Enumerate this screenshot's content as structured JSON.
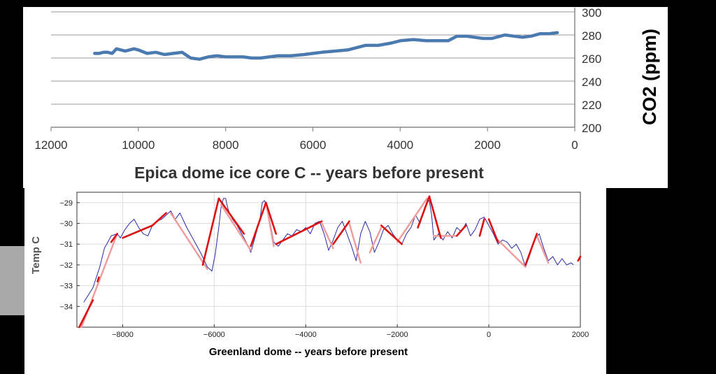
{
  "chart_data": [
    {
      "type": "line",
      "xlabel": "Epica dome ice core C -- years before present",
      "ylabel": "CO2 (ppm)",
      "xlim": [
        12000,
        0
      ],
      "ylim": [
        200,
        300
      ],
      "x_ticks": [
        12000,
        10000,
        8000,
        6000,
        4000,
        2000,
        0
      ],
      "y_ticks": [
        200,
        220,
        240,
        260,
        280,
        300
      ],
      "y_axis_side": "right",
      "grid": "horizontal",
      "colors": {
        "line": "#4a7ab0",
        "grid": "#9a9a9a",
        "axis": "#888888"
      },
      "series": [
        {
          "x": [
            11000,
            10900,
            10800,
            10700,
            10600,
            10500,
            10400,
            10300,
            10200,
            10100,
            10000,
            9800,
            9600,
            9400,
            9200,
            9000,
            8800,
            8600,
            8400,
            8200,
            8000,
            7800,
            7600,
            7400,
            7200,
            7000,
            6800,
            6500,
            6200,
            6000,
            5800,
            5500,
            5200,
            5000,
            4800,
            4500,
            4200,
            4000,
            3700,
            3400,
            3100,
            2900,
            2700,
            2500,
            2300,
            2100,
            1900,
            1700,
            1600,
            1400,
            1200,
            1000,
            800,
            600,
            400
          ],
          "y": [
            264,
            264,
            265,
            265,
            264,
            268,
            267,
            266,
            267,
            268,
            267,
            264,
            265,
            263,
            264,
            265,
            260,
            259,
            261,
            262,
            261,
            261,
            261,
            260,
            260,
            261,
            262,
            262,
            263,
            264,
            265,
            266,
            267,
            269,
            271,
            271,
            273,
            275,
            276,
            275,
            275,
            275,
            279,
            279,
            278,
            277,
            277,
            279,
            280,
            279,
            278,
            279,
            281,
            281,
            282
          ]
        }
      ]
    },
    {
      "type": "line",
      "xlabel": "Greenland dome -- years before present",
      "ylabel": "Temp C",
      "xlim": [
        -9000,
        2000
      ],
      "ylim": [
        -35,
        -28.5
      ],
      "x_ticks": [
        -8000,
        -6000,
        -4000,
        -2000,
        0,
        2000
      ],
      "x_tick_labels": [
        "−8000",
        "−6000",
        "−4000",
        "−2000",
        "0",
        "2000"
      ],
      "y_ticks": [
        -34,
        -33,
        -32,
        -31,
        -30,
        -29
      ],
      "y_tick_labels": [
        "−34",
        "−33",
        "−32",
        "−31",
        "−30",
        "−29"
      ],
      "grid": "both",
      "colors": {
        "raw": "#2a2aa8",
        "trend": "#dd1111",
        "trend_light": "#f09a9a",
        "grid": "#dddddd",
        "axis": "#333333"
      },
      "series": [
        {
          "style": "raw",
          "x": [
            -8850,
            -8650,
            -8500,
            -8400,
            -8250,
            -8120,
            -8050,
            -7950,
            -7850,
            -7750,
            -7650,
            -7550,
            -7450,
            -7350,
            -7250,
            -7150,
            -7050,
            -6950,
            -6850,
            -6750,
            -6600,
            -6450,
            -6300,
            -6150,
            -6050,
            -5980,
            -5900,
            -5850,
            -5800,
            -5750,
            -5700,
            -5650,
            -5600,
            -5500,
            -5400,
            -5300,
            -5200,
            -5100,
            -5000,
            -4950,
            -4900,
            -4850,
            -4800,
            -4750,
            -4700,
            -4600,
            -4500,
            -4400,
            -4300,
            -4200,
            -4100,
            -4000,
            -3900,
            -3800,
            -3700,
            -3600,
            -3500,
            -3400,
            -3300,
            -3200,
            -3100,
            -3000,
            -2900,
            -2800,
            -2700,
            -2600,
            -2500,
            -2400,
            -2300,
            -2200,
            -2100,
            -2000,
            -1900,
            -1800,
            -1700,
            -1600,
            -1500,
            -1400,
            -1350,
            -1300,
            -1250,
            -1200,
            -1100,
            -1000,
            -900,
            -800,
            -700,
            -600,
            -500,
            -400,
            -300,
            -200,
            -100,
            0,
            100,
            200,
            300,
            400,
            500,
            600,
            700,
            800,
            900,
            1000,
            1100,
            1200,
            1300,
            1400,
            1500,
            1600,
            1700,
            1800,
            1850
          ],
          "y": [
            -33.8,
            -33.1,
            -32.1,
            -31.2,
            -30.6,
            -30.5,
            -30.7,
            -30.3,
            -30.0,
            -29.8,
            -30.2,
            -30.5,
            -30.6,
            -30.1,
            -29.9,
            -29.8,
            -29.6,
            -29.4,
            -29.8,
            -29.5,
            -30.2,
            -30.8,
            -31.4,
            -32.1,
            -32.3,
            -31.5,
            -30.2,
            -29.2,
            -28.8,
            -28.8,
            -29.3,
            -29.6,
            -29.8,
            -30.1,
            -30.5,
            -30.9,
            -31.4,
            -30.6,
            -29.8,
            -29.0,
            -28.9,
            -29.2,
            -29.7,
            -30.3,
            -30.9,
            -31.1,
            -30.8,
            -30.5,
            -30.6,
            -30.3,
            -30.4,
            -30.2,
            -30.5,
            -30.0,
            -29.9,
            -30.5,
            -31.3,
            -30.8,
            -30.2,
            -29.9,
            -30.5,
            -31.1,
            -31.8,
            -30.5,
            -29.9,
            -30.4,
            -31.4,
            -30.9,
            -30.3,
            -30.1,
            -30.5,
            -30.8,
            -31.0,
            -30.5,
            -30.2,
            -29.6,
            -30.0,
            -29.2,
            -29.0,
            -28.9,
            -29.6,
            -30.8,
            -30.5,
            -30.8,
            -30.4,
            -30.7,
            -30.2,
            -30.4,
            -30.0,
            -30.6,
            -30.3,
            -29.8,
            -29.7,
            -30.1,
            -30.5,
            -31.0,
            -30.8,
            -30.9,
            -31.2,
            -31.0,
            -31.4,
            -32.1,
            -31.5,
            -30.8,
            -30.5,
            -31.2,
            -31.8,
            -31.6,
            -32.0,
            -31.7,
            -32.0,
            -31.9,
            -32.0
          ]
        },
        {
          "style": "trend_light",
          "segments": [
            [
              [
                -8900,
                -35.0
              ],
              [
                -8120,
                -30.5
              ]
            ],
            [
              [
                -6950,
                -29.5
              ],
              [
                -6150,
                -32.2
              ]
            ],
            [
              [
                -5850,
                -29.1
              ],
              [
                -5200,
                -31.3
              ]
            ],
            [
              [
                -4850,
                -29.2
              ],
              [
                -4700,
                -31.1
              ]
            ],
            [
              [
                -3650,
                -30.0
              ],
              [
                -3400,
                -31.2
              ]
            ],
            [
              [
                -3050,
                -30.0
              ],
              [
                -2800,
                -31.9
              ]
            ],
            [
              [
                -2600,
                -31.4
              ],
              [
                -2350,
                -30.2
              ]
            ],
            [
              [
                -2000,
                -30.9
              ],
              [
                -1350,
                -28.8
              ]
            ],
            [
              [
                -1200,
                -30.6
              ],
              [
                -700,
                -30.6
              ]
            ],
            [
              [
                200,
                -30.8
              ],
              [
                800,
                -32.1
              ]
            ],
            [
              [
                1050,
                -30.6
              ],
              [
                1300,
                -31.9
              ]
            ]
          ]
        },
        {
          "style": "trend",
          "segments": [
            [
              [
                -8950,
                -35.0
              ],
              [
                -8650,
                -33.7
              ]
            ],
            [
              [
                -8550,
                -32.8
              ],
              [
                -8520,
                -32.6
              ]
            ],
            [
              [
                -8250,
                -30.9
              ],
              [
                -8120,
                -30.5
              ]
            ],
            [
              [
                -8000,
                -30.7
              ],
              [
                -7350,
                -30.1
              ]
            ],
            [
              [
                -7350,
                -30.1
              ],
              [
                -7050,
                -29.5
              ]
            ],
            [
              [
                -6250,
                -32.0
              ],
              [
                -5900,
                -28.8
              ]
            ],
            [
              [
                -5900,
                -28.8
              ],
              [
                -5350,
                -30.5
              ]
            ],
            [
              [
                -5200,
                -31.1
              ],
              [
                -4870,
                -29.0
              ]
            ],
            [
              [
                -4870,
                -29.0
              ],
              [
                -4650,
                -30.5
              ]
            ],
            [
              [
                -4650,
                -31.0
              ],
              [
                -3650,
                -29.9
              ]
            ],
            [
              [
                -3400,
                -31.0
              ],
              [
                -3050,
                -29.9
              ]
            ],
            [
              [
                -2350,
                -30.1
              ],
              [
                -1900,
                -31.0
              ]
            ],
            [
              [
                -1550,
                -30.2
              ],
              [
                -1300,
                -28.7
              ]
            ],
            [
              [
                -1300,
                -28.7
              ],
              [
                -1050,
                -30.7
              ]
            ],
            [
              [
                -700,
                -30.6
              ],
              [
                -500,
                -30.1
              ]
            ],
            [
              [
                -200,
                -30.6
              ],
              [
                -100,
                -29.8
              ]
            ],
            [
              [
                0,
                -29.8
              ],
              [
                200,
                -30.9
              ]
            ],
            [
              [
                800,
                -32.0
              ],
              [
                1050,
                -30.5
              ]
            ],
            [
              [
                1950,
                -31.8
              ],
              [
                2000,
                -31.6
              ]
            ]
          ]
        }
      ]
    }
  ]
}
